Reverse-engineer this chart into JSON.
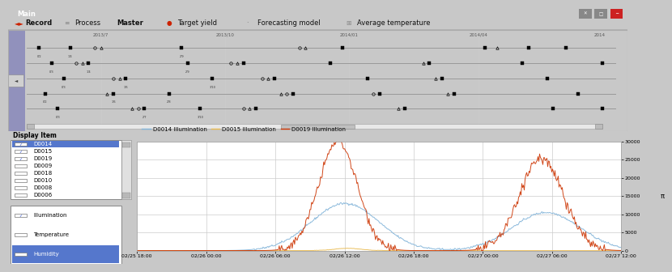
{
  "title_bar": "Main",
  "toolbar_items": [
    "Record",
    "Process",
    "Master",
    "Target yield",
    "Forecasting model",
    "Average temperature"
  ],
  "timeline_dates": [
    "2013/7",
    "2013/10",
    "2014/01",
    "2014/04",
    "2014"
  ],
  "display_items": [
    "D0014",
    "D0015",
    "D0019",
    "D0009",
    "D0018",
    "D0010",
    "D0008",
    "D0006"
  ],
  "checked_items": [
    "D0014",
    "D0015",
    "D0019"
  ],
  "sensor_types": [
    "Illumination",
    "Temperature",
    "Humidity"
  ],
  "checked_sensors": [
    "Illumination"
  ],
  "selected_display": "D0014",
  "selected_sensor": "Humidity",
  "legend_labels": [
    "D0014 Illumination",
    "D0015 Illumination",
    "D0019 Illumination"
  ],
  "legend_colors": [
    "#7fb2d8",
    "#e8b84b",
    "#cc3300"
  ],
  "x_tick_labels": [
    "02/25 18:00",
    "02/26 00:00",
    "02/26 06:00",
    "02/26 12:00",
    "02/26 18:00",
    "02/27 00:00",
    "02/27 06:00",
    "02/27 12:00"
  ],
  "y_right_ticks": [
    0,
    5000,
    10000,
    15000,
    20000,
    25000,
    30000
  ],
  "title_bg": "#2244aa",
  "toolbar_bg": "#f0f0f0",
  "plot_bg": "#ffffff",
  "grid_color": "#cccccc",
  "win_bg": "#c8c8c8",
  "sidebar_select_color": "#5577cc",
  "humidity_select_color": "#5577cc"
}
